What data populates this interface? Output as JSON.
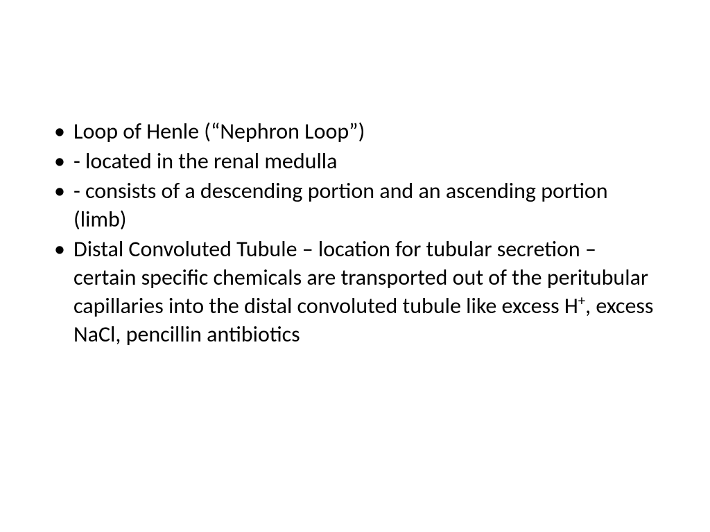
{
  "slide": {
    "background_color": "#ffffff",
    "text_color": "#000000",
    "font_family": "Calibri",
    "font_size_pt": 24,
    "bullets": [
      {
        "text": "Loop of Henle (“Nephron Loop”)",
        "indent": false
      },
      {
        "text": " - located in the renal medulla",
        "indent": false
      },
      {
        "text": " - consists of a descending portion and an ascending portion (limb)",
        "indent": false
      },
      {
        "text_html": "Distal Convoluted Tubule – location for tubular secretion – certain specific chemicals are transported out of the peritubular capillaries into the distal convoluted tubule like excess H<sup>+</sup>, excess NaCl, pencillin antibiotics",
        "indent": false
      }
    ]
  }
}
